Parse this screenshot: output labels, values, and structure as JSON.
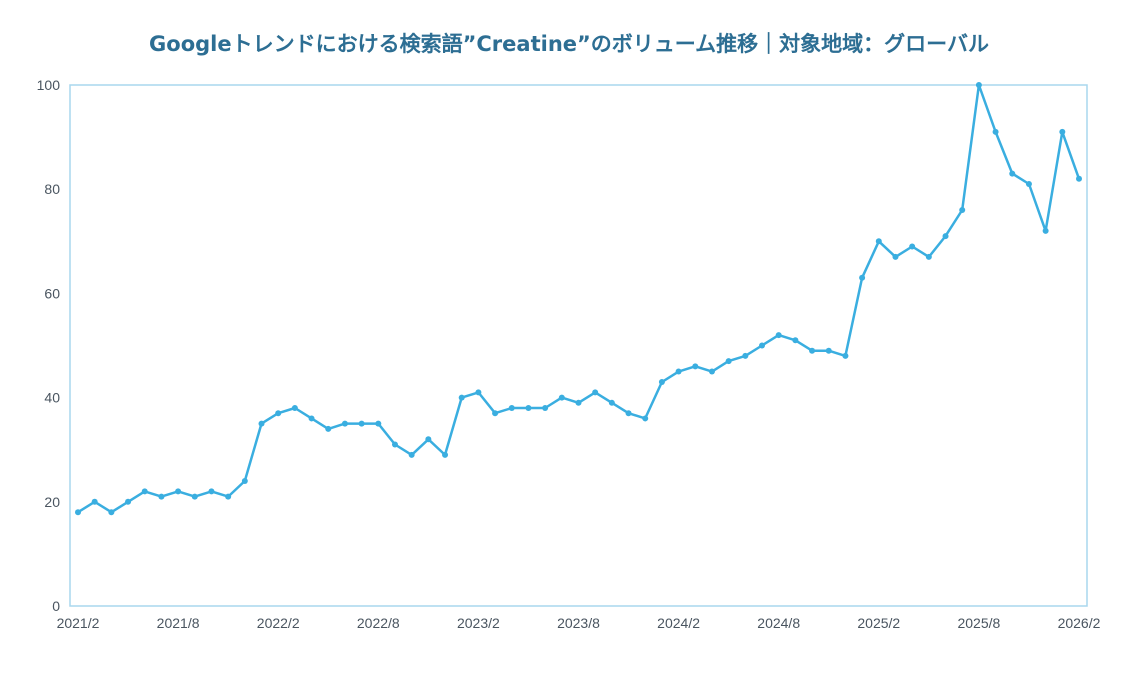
{
  "chart_data": {
    "type": "line",
    "title": "Googleトレンドにおける検索語”Creatine”のボリューム推移｜対象地域：グローバル",
    "xlabel": "",
    "ylabel": "",
    "ylim": [
      0,
      100
    ],
    "grid": false,
    "yticks": [
      0,
      20,
      40,
      60,
      80,
      100
    ],
    "xticks": [
      "2021/2",
      "2021/8",
      "2022/2",
      "2022/8",
      "2023/2",
      "2023/8",
      "2024/2",
      "2024/8",
      "2025/2",
      "2025/8",
      "2026/2"
    ],
    "x": [
      "2021/2",
      "2021/3",
      "2021/4",
      "2021/5",
      "2021/6",
      "2021/7",
      "2021/8",
      "2021/9",
      "2021/10",
      "2021/11",
      "2021/12",
      "2022/1",
      "2022/2",
      "2022/3",
      "2022/4",
      "2022/5",
      "2022/6",
      "2022/7",
      "2022/8",
      "2022/9",
      "2022/10",
      "2022/11",
      "2022/12",
      "2023/1",
      "2023/2",
      "2023/3",
      "2023/4",
      "2023/5",
      "2023/6",
      "2023/7",
      "2023/8",
      "2023/9",
      "2023/10",
      "2023/11",
      "2023/12",
      "2024/1",
      "2024/2",
      "2024/3",
      "2024/4",
      "2024/5",
      "2024/6",
      "2024/7",
      "2024/8",
      "2024/9",
      "2024/10",
      "2024/11",
      "2024/12",
      "2025/1",
      "2025/2",
      "2025/3",
      "2025/4",
      "2025/5",
      "2025/6",
      "2025/7",
      "2025/8",
      "2025/9",
      "2025/10",
      "2025/11",
      "2025/12",
      "2026/1",
      "2026/2"
    ],
    "series": [
      {
        "color": "#3aaee0",
        "values": [
          18,
          20,
          18,
          20,
          22,
          21,
          22,
          21,
          22,
          21,
          24,
          35,
          37,
          38,
          36,
          34,
          35,
          35,
          35,
          31,
          29,
          32,
          29,
          40,
          41,
          37,
          38,
          38,
          38,
          40,
          39,
          41,
          39,
          37,
          36,
          43,
          45,
          46,
          45,
          47,
          48,
          50,
          52,
          51,
          49,
          49,
          48,
          63,
          70,
          67,
          69,
          67,
          71,
          76,
          100,
          91,
          83,
          81,
          72,
          91,
          82
        ]
      }
    ]
  }
}
